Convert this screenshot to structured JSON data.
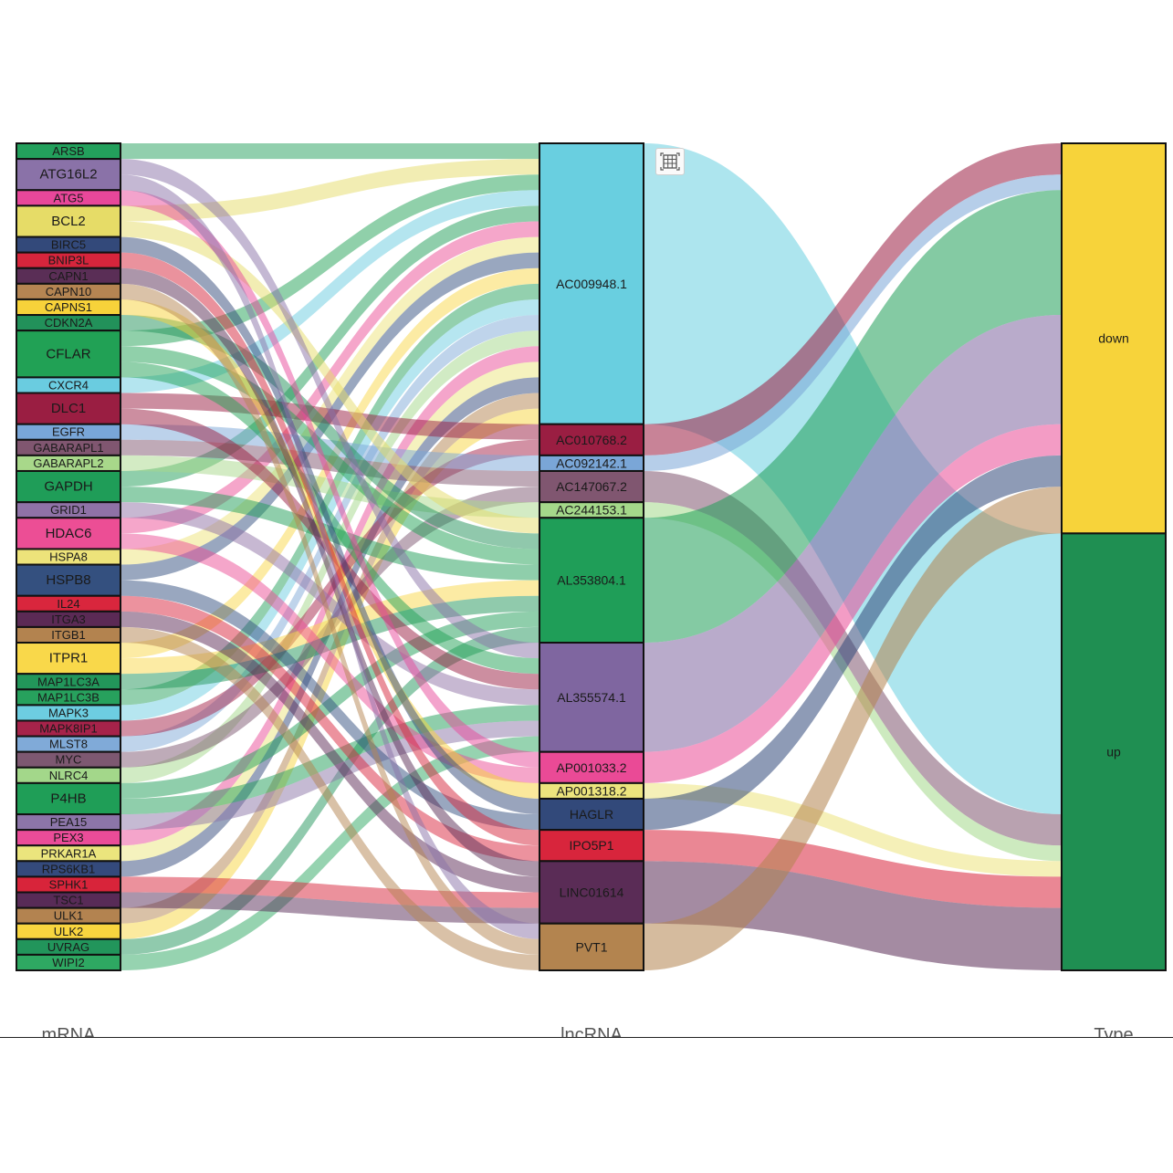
{
  "chart_data": {
    "type": "sankey",
    "axes": [
      "mRNA",
      "lncRNA",
      "Type"
    ],
    "columns": {
      "mRNA": [
        {
          "name": "ARSB",
          "value": 1,
          "color": "#23a05c"
        },
        {
          "name": "ATG16L2",
          "value": 2,
          "color": "#8a72a8"
        },
        {
          "name": "ATG5",
          "value": 1,
          "color": "#e8479a"
        },
        {
          "name": "BCL2",
          "value": 2,
          "color": "#e6dc67"
        },
        {
          "name": "BIRC5",
          "value": 1,
          "color": "#33497a"
        },
        {
          "name": "BNIP3L",
          "value": 1,
          "color": "#d6253c"
        },
        {
          "name": "CAPN1",
          "value": 1,
          "color": "#5a2e56"
        },
        {
          "name": "CAPN10",
          "value": 1,
          "color": "#b58552"
        },
        {
          "name": "CAPNS1",
          "value": 1,
          "color": "#f7d23a"
        },
        {
          "name": "CDKN2A",
          "value": 1,
          "color": "#22915a"
        },
        {
          "name": "CFLAR",
          "value": 3,
          "color": "#21a155"
        },
        {
          "name": "CXCR4",
          "value": 1,
          "color": "#6acce0"
        },
        {
          "name": "DLC1",
          "value": 2,
          "color": "#9a1e42"
        },
        {
          "name": "EGFR",
          "value": 1,
          "color": "#79a6d8"
        },
        {
          "name": "GABARAPL1",
          "value": 1,
          "color": "#805670"
        },
        {
          "name": "GABARAPL2",
          "value": 1,
          "color": "#a8d88a"
        },
        {
          "name": "GAPDH",
          "value": 2,
          "color": "#1f9d58"
        },
        {
          "name": "GRID1",
          "value": 1,
          "color": "#8f72a6"
        },
        {
          "name": "HDAC6",
          "value": 2,
          "color": "#ec4e95"
        },
        {
          "name": "HSPA8",
          "value": 1,
          "color": "#ede37a"
        },
        {
          "name": "HSPB8",
          "value": 2,
          "color": "#34507f"
        },
        {
          "name": "IL24",
          "value": 1,
          "color": "#d9263d"
        },
        {
          "name": "ITGA3",
          "value": 1,
          "color": "#5b2a55"
        },
        {
          "name": "ITGB1",
          "value": 1,
          "color": "#b3834f"
        },
        {
          "name": "ITPR1",
          "value": 2,
          "color": "#f9d84a"
        },
        {
          "name": "MAP1LC3A",
          "value": 1,
          "color": "#22965a"
        },
        {
          "name": "MAP1LC3B",
          "value": 1,
          "color": "#27a15d"
        },
        {
          "name": "MAPK3",
          "value": 1,
          "color": "#6dcde1"
        },
        {
          "name": "MAPK8IP1",
          "value": 1,
          "color": "#a6234a"
        },
        {
          "name": "MLST8",
          "value": 1,
          "color": "#80aad8"
        },
        {
          "name": "MYC",
          "value": 1,
          "color": "#7d5871"
        },
        {
          "name": "NLRC4",
          "value": 1,
          "color": "#a3d78a"
        },
        {
          "name": "P4HB",
          "value": 2,
          "color": "#1f9e57"
        },
        {
          "name": "PEA15",
          "value": 1,
          "color": "#8c75a8"
        },
        {
          "name": "PEX3",
          "value": 1,
          "color": "#ea4c98"
        },
        {
          "name": "PRKAR1A",
          "value": 1,
          "color": "#ebe57d"
        },
        {
          "name": "RPS6KB1",
          "value": 1,
          "color": "#344a7c"
        },
        {
          "name": "SPHK1",
          "value": 1,
          "color": "#d8243a"
        },
        {
          "name": "TSC1",
          "value": 1,
          "color": "#582b57"
        },
        {
          "name": "ULK1",
          "value": 1,
          "color": "#b38350"
        },
        {
          "name": "ULK2",
          "value": 1,
          "color": "#f8d53f"
        },
        {
          "name": "UVRAG",
          "value": 1,
          "color": "#22955b"
        },
        {
          "name": "WIPI2",
          "value": 1,
          "color": "#2ea862"
        }
      ],
      "lncRNA": [
        {
          "name": "AC009948.1",
          "value": 18,
          "color": "#69cfe0"
        },
        {
          "name": "AC010768.2",
          "value": 2,
          "color": "#9a1e42"
        },
        {
          "name": "AC092142.1",
          "value": 1,
          "color": "#7aa6d7"
        },
        {
          "name": "AC147067.2",
          "value": 2,
          "color": "#805670"
        },
        {
          "name": "AC244153.1",
          "value": 1,
          "color": "#a4d88a"
        },
        {
          "name": "AL353804.1",
          "value": 8,
          "color": "#1f9e58"
        },
        {
          "name": "AL355574.1",
          "value": 7,
          "color": "#7f66a0"
        },
        {
          "name": "AP001033.2",
          "value": 2,
          "color": "#ea4a96"
        },
        {
          "name": "AP001318.2",
          "value": 1,
          "color": "#ece47d"
        },
        {
          "name": "HAGLR",
          "value": 2,
          "color": "#32497a"
        },
        {
          "name": "IPO5P1",
          "value": 2,
          "color": "#d8253c"
        },
        {
          "name": "LINC01614",
          "value": 4,
          "color": "#5a2c56"
        },
        {
          "name": "PVT1",
          "value": 3,
          "color": "#b3844f"
        }
      ],
      "Type": [
        {
          "name": "down",
          "value": 25,
          "color": "#f7d33a"
        },
        {
          "name": "up",
          "value": 28,
          "color": "#1f8f52"
        }
      ]
    },
    "links_mrna_lncrna": [
      [
        "ARSB",
        "AC009948.1",
        1
      ],
      [
        "ATG16L2",
        "AL355574.1",
        1
      ],
      [
        "ATG16L2",
        "PVT1",
        1
      ],
      [
        "ATG5",
        "AP001033.2",
        1
      ],
      [
        "BCL2",
        "AC009948.1",
        1
      ],
      [
        "BCL2",
        "AL353804.1",
        1
      ],
      [
        "BIRC5",
        "HAGLR",
        1
      ],
      [
        "BNIP3L",
        "IPO5P1",
        1
      ],
      [
        "CAPN1",
        "LINC01614",
        1
      ],
      [
        "CAPN10",
        "PVT1",
        1
      ],
      [
        "CAPNS1",
        "AP001318.2",
        1
      ],
      [
        "CDKN2A",
        "AL353804.1",
        1
      ],
      [
        "CFLAR",
        "AC009948.1",
        1
      ],
      [
        "CFLAR",
        "AL353804.1",
        1
      ],
      [
        "CFLAR",
        "AL355574.1",
        1
      ],
      [
        "CXCR4",
        "AC009948.1",
        1
      ],
      [
        "DLC1",
        "AC010768.2",
        1
      ],
      [
        "DLC1",
        "AL355574.1",
        1
      ],
      [
        "EGFR",
        "AC092142.1",
        1
      ],
      [
        "GABARAPL1",
        "AC147067.2",
        1
      ],
      [
        "GABARAPL2",
        "AC244153.1",
        1
      ],
      [
        "GAPDH",
        "AC009948.1",
        1
      ],
      [
        "GAPDH",
        "AL353804.1",
        1
      ],
      [
        "GRID1",
        "AL355574.1",
        1
      ],
      [
        "HDAC6",
        "AP001033.2",
        1
      ],
      [
        "HDAC6",
        "AC009948.1",
        1
      ],
      [
        "HSPA8",
        "AC009948.1",
        1
      ],
      [
        "HSPB8",
        "HAGLR",
        1
      ],
      [
        "HSPB8",
        "AC009948.1",
        1
      ],
      [
        "IL24",
        "IPO5P1",
        1
      ],
      [
        "ITGA3",
        "LINC01614",
        1
      ],
      [
        "ITGB1",
        "PVT1",
        1
      ],
      [
        "ITPR1",
        "AC009948.1",
        1
      ],
      [
        "ITPR1",
        "AL353804.1",
        1
      ],
      [
        "MAP1LC3A",
        "AL353804.1",
        1
      ],
      [
        "MAP1LC3B",
        "AC009948.1",
        1
      ],
      [
        "MAPK3",
        "AC009948.1",
        1
      ],
      [
        "MAPK8IP1",
        "AC010768.2",
        1
      ],
      [
        "MLST8",
        "AC009948.1",
        1
      ],
      [
        "MYC",
        "AC147067.2",
        1
      ],
      [
        "NLRC4",
        "AC009948.1",
        1
      ],
      [
        "P4HB",
        "AL353804.1",
        1
      ],
      [
        "P4HB",
        "AL355574.1",
        1
      ],
      [
        "PEA15",
        "AL355574.1",
        1
      ],
      [
        "PEX3",
        "AC009948.1",
        1
      ],
      [
        "PRKAR1A",
        "AC009948.1",
        1
      ],
      [
        "RPS6KB1",
        "AC009948.1",
        1
      ],
      [
        "SPHK1",
        "LINC01614",
        1
      ],
      [
        "TSC1",
        "LINC01614",
        1
      ],
      [
        "ULK1",
        "AC009948.1",
        1
      ],
      [
        "ULK2",
        "AC009948.1",
        1
      ],
      [
        "UVRAG",
        "AL353804.1",
        1
      ],
      [
        "WIPI2",
        "AL355574.1",
        1
      ]
    ],
    "links_lncrna_type": [
      [
        "AC009948.1",
        "up",
        18
      ],
      [
        "AC010768.2",
        "down",
        2
      ],
      [
        "AC092142.1",
        "down",
        1
      ],
      [
        "AC147067.2",
        "up",
        2
      ],
      [
        "AC244153.1",
        "up",
        1
      ],
      [
        "AL353804.1",
        "down",
        8
      ],
      [
        "AL355574.1",
        "down",
        7
      ],
      [
        "AP001033.2",
        "down",
        2
      ],
      [
        "AP001318.2",
        "up",
        1
      ],
      [
        "HAGLR",
        "down",
        2
      ],
      [
        "IPO5P1",
        "up",
        2
      ],
      [
        "LINC01614",
        "up",
        4
      ],
      [
        "PVT1",
        "down",
        3
      ]
    ]
  }
}
